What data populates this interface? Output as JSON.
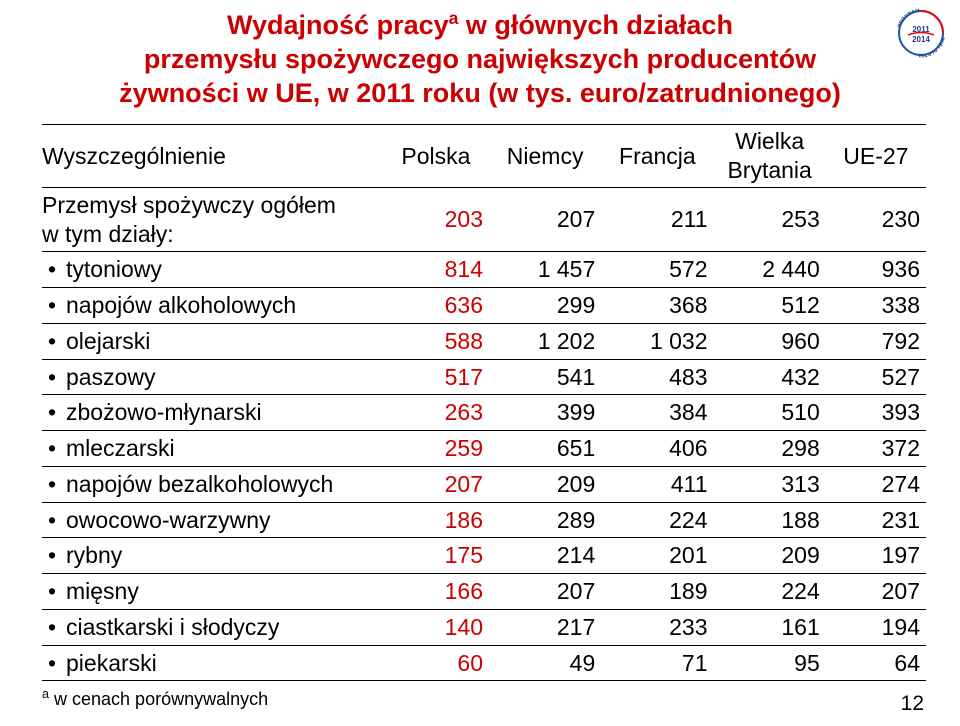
{
  "title_line1": "Wydajność pracy",
  "title_sup": "a",
  "title_line1b": " w głównych działach",
  "title_line2": "przemysłu spożywczego największych producentów",
  "title_line3": "żywności w UE, w 2011 roku (w tys. euro/zatrudnionego)",
  "title_color": "#cc0000",
  "value_red": "#cc0000",
  "columns": {
    "c0": "Wyszczególnienie",
    "c1": "Polska",
    "c2": "Niemcy",
    "c3": "Francja",
    "c4a": "Wielka",
    "c4b": "Brytania",
    "c5": "UE-27"
  },
  "row_headers": {
    "total_a": "Przemysł spożywczy ogółem",
    "total_b": "w tym działy:",
    "r1": "tytoniowy",
    "r2": "napojów alkoholowych",
    "r3": "olejarski",
    "r4": "paszowy",
    "r5": "zbożowo-młynarski",
    "r6": "mleczarski",
    "r7": "napojów bezalkoholowych",
    "r8": "owocowo-warzywny",
    "r9": "rybny",
    "r10": "mięsny",
    "r11": "ciastkarski i słodyczy",
    "r12": "piekarski"
  },
  "rows": {
    "total": {
      "pl": "203",
      "de": "207",
      "fr": "211",
      "uk": "253",
      "eu": "230"
    },
    "r1": {
      "pl": "814",
      "de": "1 457",
      "fr": "572",
      "uk": "2 440",
      "eu": "936"
    },
    "r2": {
      "pl": "636",
      "de": "299",
      "fr": "368",
      "uk": "512",
      "eu": "338"
    },
    "r3": {
      "pl": "588",
      "de": "1 202",
      "fr": "1 032",
      "uk": "960",
      "eu": "792"
    },
    "r4": {
      "pl": "517",
      "de": "541",
      "fr": "483",
      "uk": "432",
      "eu": "527"
    },
    "r5": {
      "pl": "263",
      "de": "399",
      "fr": "384",
      "uk": "510",
      "eu": "393"
    },
    "r6": {
      "pl": "259",
      "de": "651",
      "fr": "406",
      "uk": "298",
      "eu": "372"
    },
    "r7": {
      "pl": "207",
      "de": "209",
      "fr": "411",
      "uk": "313",
      "eu": "274"
    },
    "r8": {
      "pl": "186",
      "de": "289",
      "fr": "224",
      "uk": "188",
      "eu": "231"
    },
    "r9": {
      "pl": "175",
      "de": "214",
      "fr": "201",
      "uk": "209",
      "eu": "197"
    },
    "r10": {
      "pl": "166",
      "de": "207",
      "fr": "189",
      "uk": "224",
      "eu": "207"
    },
    "r11": {
      "pl": "140",
      "de": "217",
      "fr": "233",
      "uk": "161",
      "eu": "194"
    },
    "r12": {
      "pl": "60",
      "de": "49",
      "fr": "71",
      "uk": "95",
      "eu": "64"
    }
  },
  "footnote_sup": "a",
  "footnote_text": " w cenach porównywalnych",
  "page_number": "12",
  "logo": {
    "ring_color": "#1f5aa6",
    "accent_color": "#e30613",
    "year_a": "2011",
    "year_b": "2014",
    "text_top": "PROGRAM",
    "text_side": "WIELOLETNI"
  }
}
